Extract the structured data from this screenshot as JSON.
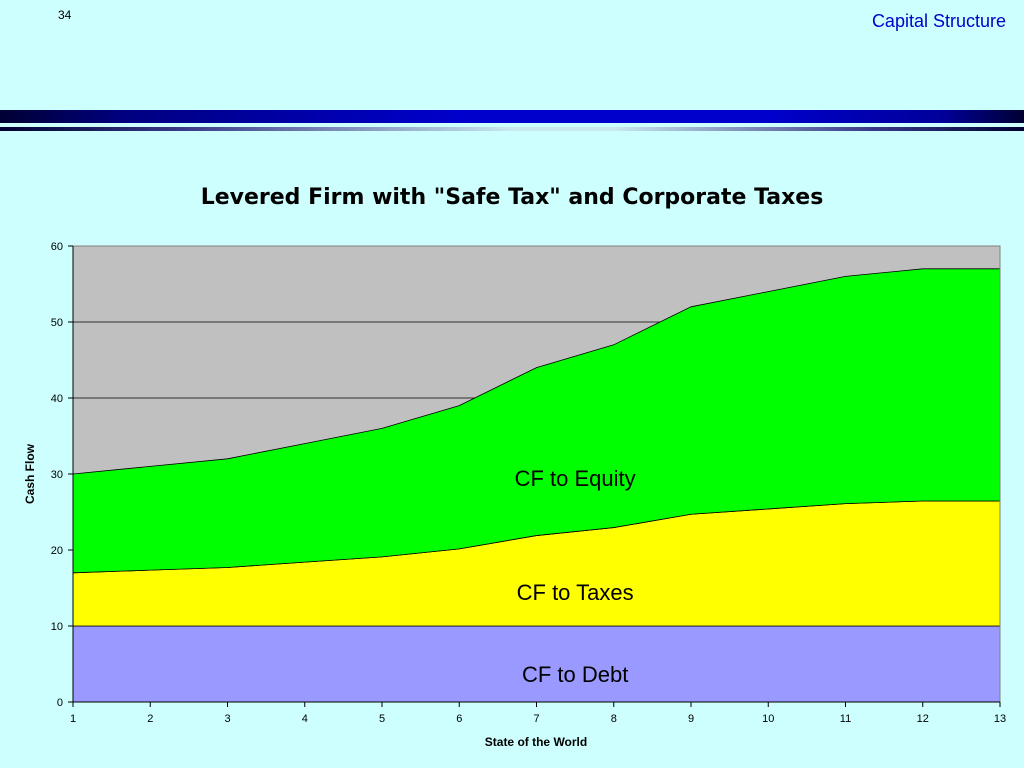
{
  "slide": {
    "number": "34",
    "heading": "Capital Structure"
  },
  "chart_data": {
    "type": "area",
    "stacked": true,
    "title": "Levered Firm with \"Safe Tax\" and Corporate Taxes",
    "xlabel": "State of the World",
    "ylabel": "Cash Flow",
    "x": [
      1,
      2,
      3,
      4,
      5,
      6,
      7,
      8,
      9,
      10,
      11,
      12,
      13
    ],
    "xlim": [
      1,
      13
    ],
    "ylim": [
      0,
      60
    ],
    "yticks": [
      0,
      10,
      20,
      30,
      40,
      50,
      60
    ],
    "grid": true,
    "plot_background": "#c0c0c0",
    "series": [
      {
        "name": "CF to Debt",
        "color": "#9999ff",
        "values": [
          10,
          10,
          10,
          10,
          10,
          10,
          10,
          10,
          10,
          10,
          10,
          10,
          10
        ]
      },
      {
        "name": "CF to Taxes",
        "color": "#ffff00",
        "values": [
          7,
          7.35,
          7.7,
          8.4,
          9.1,
          10.15,
          11.9,
          12.95,
          14.7,
          15.4,
          16.1,
          16.45,
          16.45
        ]
      },
      {
        "name": "CF to Equity",
        "color": "#00ff00",
        "values": [
          13,
          13.65,
          14.3,
          15.6,
          16.9,
          18.85,
          22.1,
          24.05,
          27.3,
          28.6,
          29.9,
          30.55,
          30.55
        ]
      }
    ],
    "labels": [
      {
        "text": "CF to Equity",
        "x": 7.5,
        "y": 29.5
      },
      {
        "text": "CF to Taxes",
        "x": 7.5,
        "y": 14.5
      },
      {
        "text": "CF to Debt",
        "x": 7.5,
        "y": 3.7
      }
    ]
  }
}
